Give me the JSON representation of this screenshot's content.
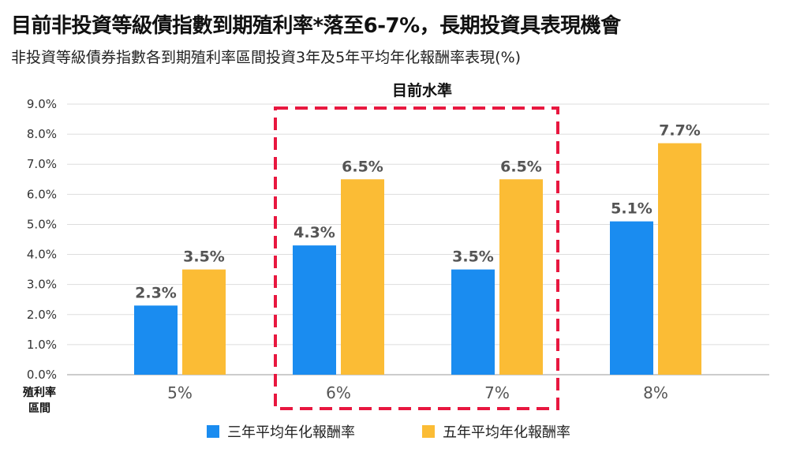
{
  "title": "目前非投資等級債指數到期殖利率*落至6-7%，長期投資具表現機會",
  "subtitle": "非投資等級債券指數各到期殖利率區間投資3年及5年平均年化報酬率表現(%)",
  "annotation": "目前水準",
  "x_axis_label_lines": [
    "殖利率",
    "區間"
  ],
  "colors": {
    "three_year": "#1a8cf0",
    "five_year": "#fbbc35",
    "highlight_box": "#e8173f"
  },
  "chart_data": {
    "type": "bar",
    "categories": [
      "5%",
      "6%",
      "7%",
      "8%"
    ],
    "series": [
      {
        "name": "三年平均年化報酬率",
        "values": [
          2.3,
          4.3,
          3.5,
          5.1
        ],
        "labels": [
          "2.3%",
          "4.3%",
          "3.5%",
          "5.1%"
        ]
      },
      {
        "name": "五年平均年化報酬率",
        "values": [
          3.5,
          6.5,
          6.5,
          7.7
        ],
        "labels": [
          "3.5%",
          "6.5%",
          "6.5%",
          "7.7%"
        ]
      }
    ],
    "ylim": [
      0,
      9
    ],
    "yticks": [
      "0.0%",
      "1.0%",
      "2.0%",
      "3.0%",
      "4.0%",
      "5.0%",
      "6.0%",
      "7.0%",
      "8.0%",
      "9.0%"
    ],
    "grid": true,
    "legend": "bottom",
    "highlighted_categories": [
      "6%",
      "7%"
    ]
  }
}
